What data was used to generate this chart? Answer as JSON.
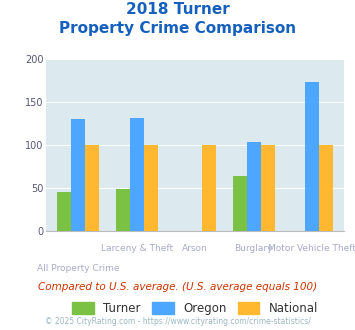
{
  "title_line1": "2018 Turner",
  "title_line2": "Property Crime Comparison",
  "categories": [
    "All Property Crime",
    "Larceny & Theft",
    "Arson",
    "Burglary",
    "Motor Vehicle Theft"
  ],
  "top_labels": [
    "",
    "Larceny & Theft",
    "Arson",
    "Burglary",
    "Motor Vehicle Theft"
  ],
  "bot_labels": [
    "All Property Crime",
    "",
    "",
    "",
    ""
  ],
  "turner": [
    46,
    49,
    null,
    64,
    null
  ],
  "oregon": [
    130,
    132,
    null,
    104,
    174
  ],
  "national": [
    100,
    100,
    100,
    100,
    100
  ],
  "turner_color": "#7bc143",
  "oregon_color": "#4da6ff",
  "national_color": "#ffb830",
  "bg_color": "#dce9ee",
  "ylim": [
    0,
    200
  ],
  "yticks": [
    0,
    50,
    100,
    150,
    200
  ],
  "footnote": "Compared to U.S. average. (U.S. average equals 100)",
  "copyright": "© 2025 CityRating.com - https://www.cityrating.com/crime-statistics/",
  "title_color": "#1560bd",
  "footnote_color": "#cc3300",
  "copyright_color": "#9ab8c4",
  "label_color": "#aaaacc",
  "tick_color": "#555577"
}
